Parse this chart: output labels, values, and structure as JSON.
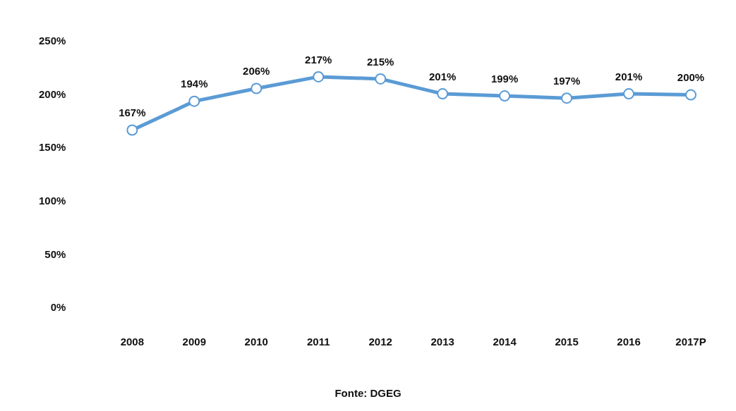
{
  "chart_data": {
    "type": "line",
    "categories": [
      "2008",
      "2009",
      "2010",
      "2011",
      "2012",
      "2013",
      "2014",
      "2015",
      "2016",
      "2017P"
    ],
    "series": [
      {
        "color": "#5b9bd5",
        "values": [
          167,
          194,
          206,
          217,
          215,
          201,
          199,
          197,
          201,
          200
        ],
        "value_labels": [
          "167%",
          "194%",
          "206%",
          "217%",
          "215%",
          "201%",
          "199%",
          "197%",
          "201%",
          "200%"
        ]
      }
    ],
    "ylim": [
      0,
      250
    ],
    "yticks": [
      {
        "value": 0,
        "label": "0%"
      },
      {
        "value": 50,
        "label": "50%"
      },
      {
        "value": 100,
        "label": "100%"
      },
      {
        "value": 150,
        "label": "150%"
      },
      {
        "value": 200,
        "label": "200%"
      },
      {
        "value": 250,
        "label": "250%"
      }
    ],
    "grid": false,
    "legend": false,
    "marker": "circle",
    "line_style": "solid",
    "annotations": [
      "Fonte: DGEG"
    ]
  }
}
